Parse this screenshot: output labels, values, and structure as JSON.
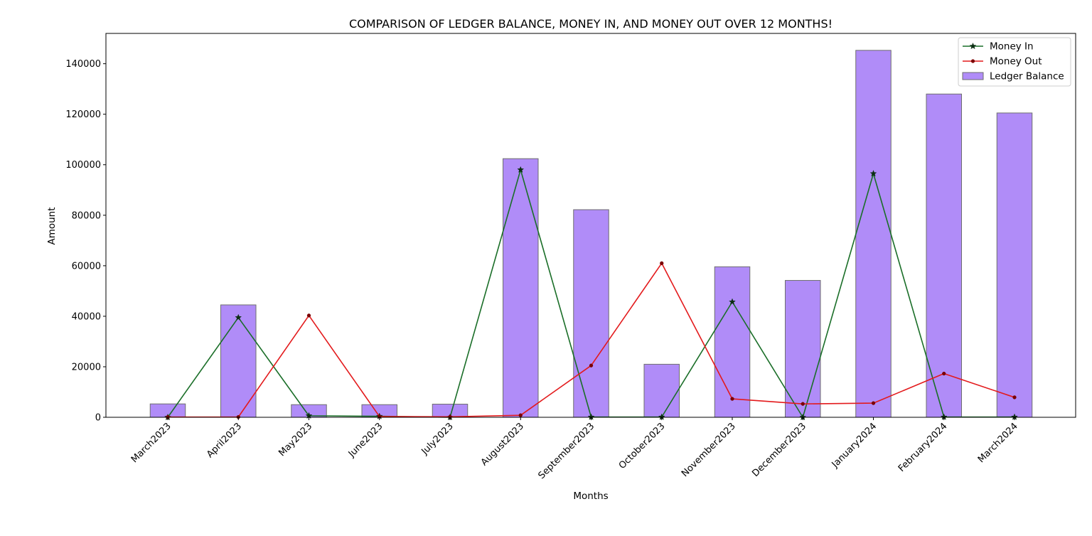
{
  "chart_data": {
    "type": "bar",
    "title": "COMPARISON OF LEDGER BALANCE, MONEY IN, AND MONEY OUT OVER 12 MONTHS!",
    "xlabel": "Months",
    "ylabel": "Amount",
    "ylim": [
      0,
      152000
    ],
    "yticks": [
      0,
      20000,
      40000,
      60000,
      80000,
      100000,
      120000,
      140000
    ],
    "grid": false,
    "legend_placement": "top-right",
    "categories": [
      "March2023",
      "April2023",
      "May2023",
      "June2023",
      "July2023",
      "August2023",
      "September2023",
      "October2023",
      "November2023",
      "December2023",
      "January2024",
      "February2024",
      "March2024"
    ],
    "series": [
      {
        "name": "Money In",
        "kind": "line",
        "color": "#1a6e28",
        "marker": "star",
        "values": [
          0,
          39500,
          600,
          400,
          0,
          98000,
          100,
          100,
          45700,
          0,
          96500,
          100,
          100
        ]
      },
      {
        "name": "Money Out",
        "kind": "line",
        "color": "#e31a1c",
        "marker": "dot",
        "values": [
          100,
          100,
          40300,
          300,
          200,
          800,
          20500,
          61000,
          7300,
          5300,
          5600,
          17300,
          7900
        ]
      },
      {
        "name": "Ledger Balance",
        "kind": "bar",
        "color": "#b08cf8",
        "edge_color": "#6e6e6e",
        "values": [
          5300,
          44500,
          5000,
          5000,
          5200,
          102400,
          82200,
          21000,
          59600,
          54200,
          145300,
          128000,
          120500
        ]
      }
    ]
  }
}
